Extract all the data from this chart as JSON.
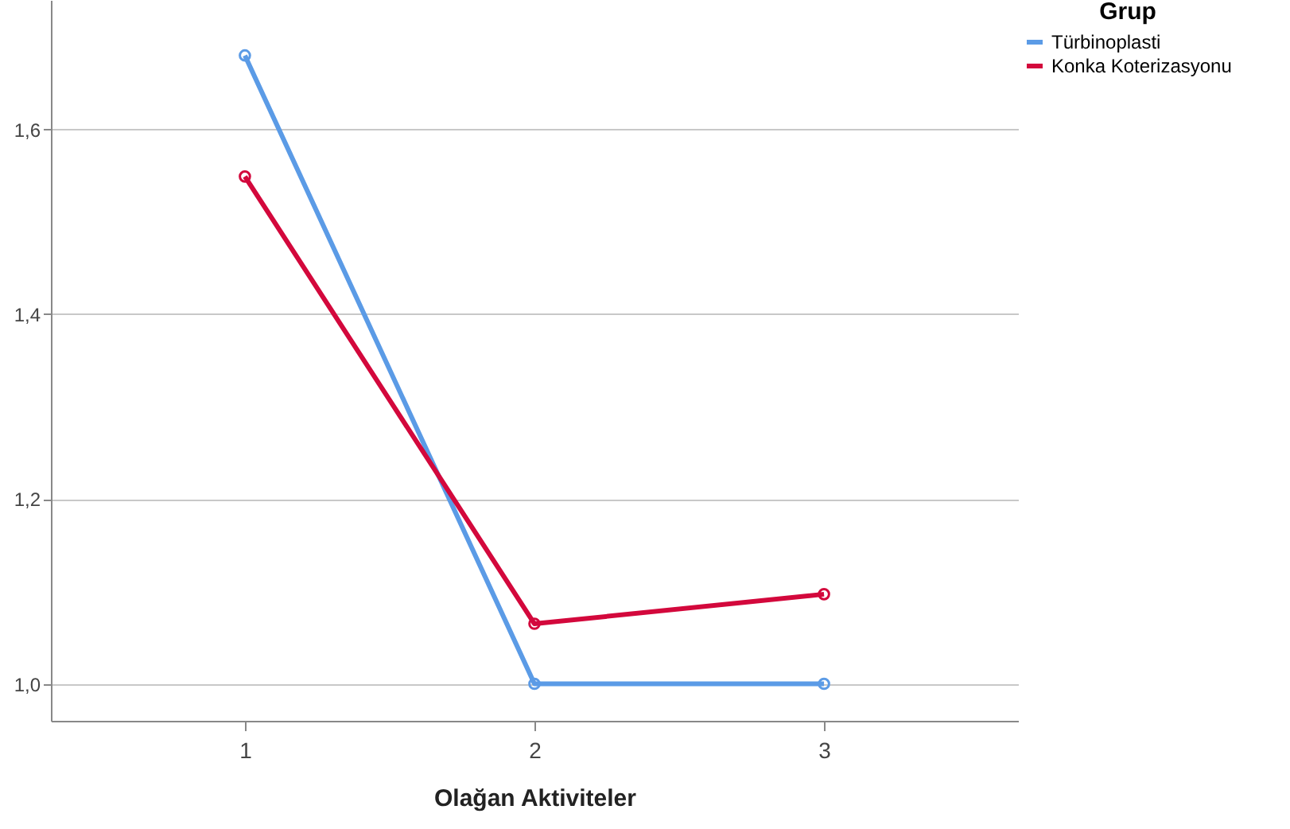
{
  "chart_data": {
    "type": "line",
    "xlabel": "Olağan Aktiviteler",
    "legend_title": "Grup",
    "x": [
      1,
      2,
      3
    ],
    "xlim": [
      0.33,
      3.67
    ],
    "xticks": [
      1,
      2,
      3
    ],
    "ylim": [
      0.96,
      1.74
    ],
    "yticks": [
      {
        "value": 1,
        "label": "1,0"
      },
      {
        "value": 1.2,
        "label": "1,2"
      },
      {
        "value": 1.4,
        "label": "1,4"
      },
      {
        "value": 1.6,
        "label": "1,6"
      }
    ],
    "grid": "y",
    "legend": "top right",
    "marker": "circle",
    "line_style": "solid",
    "series": [
      {
        "name": "Türbinoplasti",
        "color": "#5b9be6",
        "values": [
          1.68,
          1.0,
          1.0
        ]
      },
      {
        "name": "Konka Koterizasyonu",
        "color": "#d3083c",
        "values": [
          1.549,
          1.065,
          1.097
        ]
      }
    ]
  }
}
